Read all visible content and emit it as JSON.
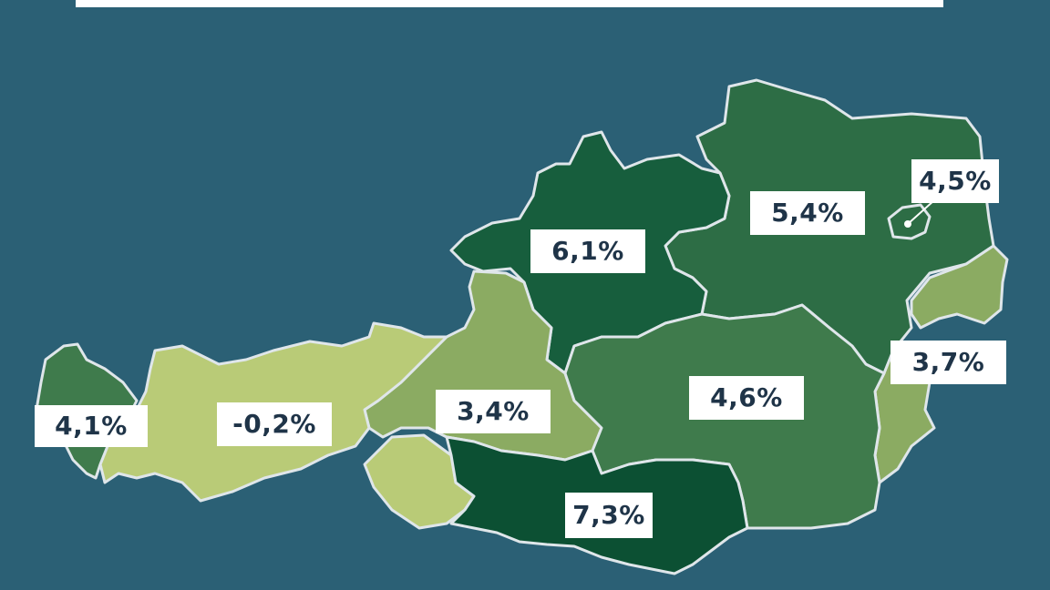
{
  "colors": {
    "background": "#2b6075",
    "border": "#dfe6ea",
    "label_bg": "#ffffff",
    "label_text": "#1f3448",
    "tone_lightest": "#b9cb77",
    "tone_light": "#8bab62",
    "tone_mid": "#3f7b4c",
    "tone_mid_dark": "#2d6d45",
    "tone_dark": "#175e3d",
    "tone_darkest": "#0c5033"
  },
  "regions": [
    {
      "id": "vorarlberg",
      "value": "4,1%"
    },
    {
      "id": "tirol",
      "value": "-0,2%"
    },
    {
      "id": "salzburg",
      "value": "3,4%"
    },
    {
      "id": "oberoesterreich",
      "value": "6,1%"
    },
    {
      "id": "niederoesterreich",
      "value": "5,4%"
    },
    {
      "id": "wien",
      "value": "4,5%"
    },
    {
      "id": "burgenland",
      "value": "3,7%"
    },
    {
      "id": "steiermark",
      "value": "4,6%"
    },
    {
      "id": "kaernten",
      "value": "7,3%"
    }
  ]
}
